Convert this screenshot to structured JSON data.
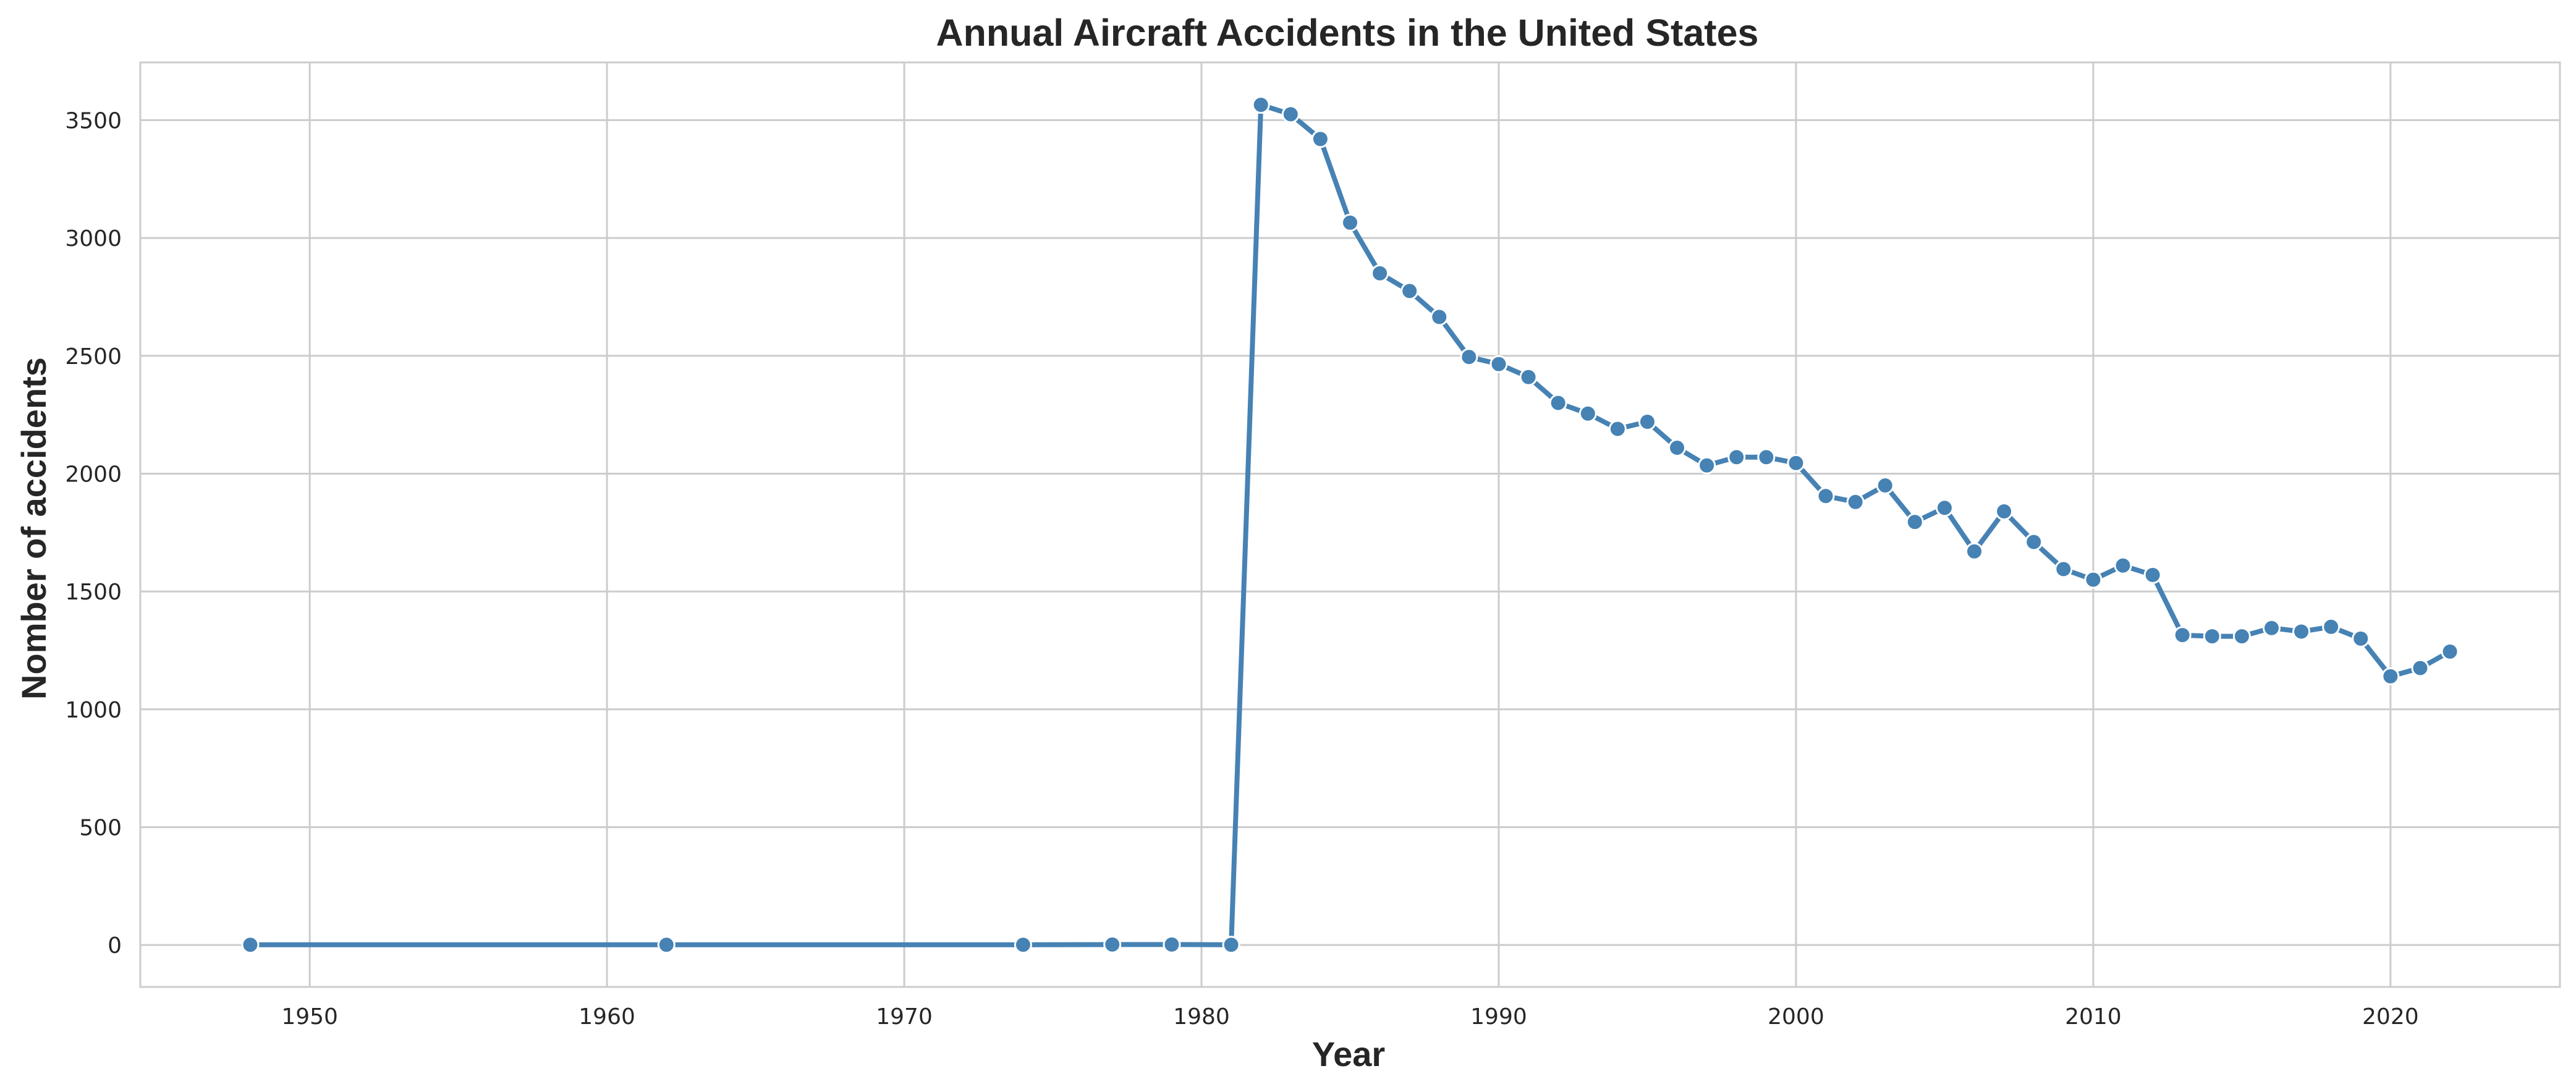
{
  "chart_data": {
    "type": "line",
    "title": "Annual Aircraft Accidents in the United States",
    "xlabel": "Year",
    "ylabel": "Nomber of accidents",
    "xlim": [
      1944.3,
      2025.7
    ],
    "ylim": [
      -178,
      3745
    ],
    "x_ticks": [
      1950,
      1960,
      1970,
      1980,
      1990,
      2000,
      2010,
      2020
    ],
    "y_ticks": [
      0,
      500,
      1000,
      1500,
      2000,
      2500,
      3000,
      3500
    ],
    "grid": true,
    "legend": "none",
    "series": [
      {
        "color": "#4682b4",
        "marker": "circle",
        "x": [
          1948,
          1962,
          1974,
          1977,
          1979,
          1981,
          1982,
          1983,
          1984,
          1985,
          1986,
          1987,
          1988,
          1989,
          1990,
          1991,
          1992,
          1993,
          1994,
          1995,
          1996,
          1997,
          1998,
          1999,
          2000,
          2001,
          2002,
          2003,
          2004,
          2005,
          2006,
          2007,
          2008,
          2009,
          2010,
          2011,
          2012,
          2013,
          2014,
          2015,
          2016,
          2017,
          2018,
          2019,
          2020,
          2021,
          2022
        ],
        "y": [
          1,
          1,
          1,
          2,
          2,
          1,
          3565,
          3525,
          3420,
          3065,
          2850,
          2775,
          2665,
          2495,
          2465,
          2410,
          2300,
          2255,
          2190,
          2220,
          2110,
          2035,
          2070,
          2070,
          2045,
          1905,
          1880,
          1950,
          1795,
          1855,
          1670,
          1840,
          1710,
          1595,
          1550,
          1610,
          1570,
          1315,
          1310,
          1310,
          1345,
          1330,
          1350,
          1300,
          1140,
          1175,
          1245
        ]
      }
    ]
  }
}
